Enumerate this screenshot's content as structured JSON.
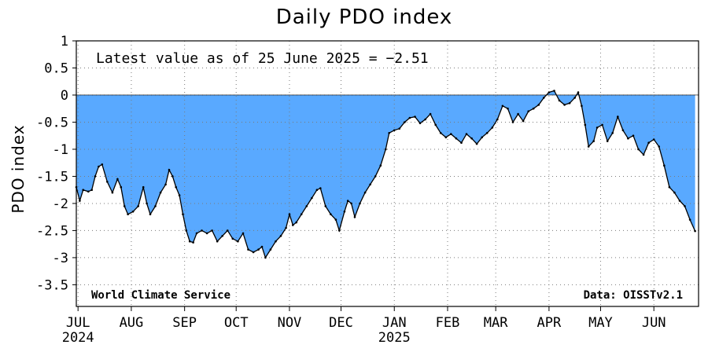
{
  "chart_data": {
    "type": "area",
    "title": "Daily PDO index",
    "ylabel": "PDO index",
    "xlabel": "",
    "annotation": "Latest value as of 25 June 2025 = −2.51",
    "credit_left": "World Climate Service",
    "credit_right": "Data: OISSTv2.1",
    "ylim": [
      -3.9,
      1.0
    ],
    "xlim": [
      "2024-06-30",
      "2025-06-27"
    ],
    "baseline": 0,
    "grid": true,
    "fill_color": "#59a9ff",
    "line_color": "#000000",
    "yticks": [
      {
        "label": "1",
        "value": 1
      },
      {
        "label": "0.5",
        "value": 0.5
      },
      {
        "label": "0",
        "value": 0
      },
      {
        "label": "-0.5",
        "value": -0.5
      },
      {
        "label": "-1",
        "value": -1
      },
      {
        "label": "-1.5",
        "value": -1.5
      },
      {
        "label": "-2",
        "value": -2
      },
      {
        "label": "-2.5",
        "value": -2.5
      },
      {
        "label": "-3",
        "value": -3
      },
      {
        "label": "-3.5",
        "value": -3.5
      }
    ],
    "xticks": [
      {
        "label": "JUL",
        "sublabel": "2024",
        "date": "2024-07-01"
      },
      {
        "label": "AUG",
        "sublabel": "",
        "date": "2024-08-01"
      },
      {
        "label": "SEP",
        "sublabel": "",
        "date": "2024-09-01"
      },
      {
        "label": "OCT",
        "sublabel": "",
        "date": "2024-10-01"
      },
      {
        "label": "NOV",
        "sublabel": "",
        "date": "2024-11-01"
      },
      {
        "label": "DEC",
        "sublabel": "",
        "date": "2024-12-01"
      },
      {
        "label": "JAN",
        "sublabel": "2025",
        "date": "2025-01-01"
      },
      {
        "label": "FEB",
        "sublabel": "",
        "date": "2025-02-01"
      },
      {
        "label": "MAR",
        "sublabel": "",
        "date": "2025-03-01"
      },
      {
        "label": "APR",
        "sublabel": "",
        "date": "2025-04-01"
      },
      {
        "label": "MAY",
        "sublabel": "",
        "date": "2025-05-01"
      },
      {
        "label": "JUN",
        "sublabel": "",
        "date": "2025-06-01"
      }
    ],
    "series": [
      {
        "points": [
          [
            "2024-06-30",
            -1.7
          ],
          [
            "2024-07-02",
            -1.95
          ],
          [
            "2024-07-04",
            -1.75
          ],
          [
            "2024-07-07",
            -1.78
          ],
          [
            "2024-07-09",
            -1.75
          ],
          [
            "2024-07-11",
            -1.5
          ],
          [
            "2024-07-13",
            -1.32
          ],
          [
            "2024-07-15",
            -1.28
          ],
          [
            "2024-07-18",
            -1.6
          ],
          [
            "2024-07-21",
            -1.8
          ],
          [
            "2024-07-24",
            -1.55
          ],
          [
            "2024-07-26",
            -1.7
          ],
          [
            "2024-07-28",
            -2.05
          ],
          [
            "2024-07-30",
            -2.2
          ],
          [
            "2024-08-02",
            -2.15
          ],
          [
            "2024-08-05",
            -2.05
          ],
          [
            "2024-08-08",
            -1.7
          ],
          [
            "2024-08-10",
            -2.0
          ],
          [
            "2024-08-12",
            -2.2
          ],
          [
            "2024-08-15",
            -2.05
          ],
          [
            "2024-08-18",
            -1.8
          ],
          [
            "2024-08-21",
            -1.65
          ],
          [
            "2024-08-23",
            -1.38
          ],
          [
            "2024-08-25",
            -1.5
          ],
          [
            "2024-08-27",
            -1.7
          ],
          [
            "2024-08-29",
            -1.85
          ],
          [
            "2024-08-31",
            -2.2
          ],
          [
            "2024-09-02",
            -2.5
          ],
          [
            "2024-09-04",
            -2.7
          ],
          [
            "2024-09-06",
            -2.72
          ],
          [
            "2024-09-08",
            -2.55
          ],
          [
            "2024-09-11",
            -2.5
          ],
          [
            "2024-09-14",
            -2.55
          ],
          [
            "2024-09-17",
            -2.5
          ],
          [
            "2024-09-20",
            -2.7
          ],
          [
            "2024-09-23",
            -2.6
          ],
          [
            "2024-09-26",
            -2.5
          ],
          [
            "2024-09-29",
            -2.65
          ],
          [
            "2024-10-02",
            -2.7
          ],
          [
            "2024-10-05",
            -2.55
          ],
          [
            "2024-10-08",
            -2.85
          ],
          [
            "2024-10-11",
            -2.9
          ],
          [
            "2024-10-14",
            -2.85
          ],
          [
            "2024-10-16",
            -2.8
          ],
          [
            "2024-10-18",
            -3.0
          ],
          [
            "2024-10-21",
            -2.85
          ],
          [
            "2024-10-24",
            -2.7
          ],
          [
            "2024-10-27",
            -2.6
          ],
          [
            "2024-10-30",
            -2.45
          ],
          [
            "2024-11-01",
            -2.2
          ],
          [
            "2024-11-03",
            -2.4
          ],
          [
            "2024-11-05",
            -2.35
          ],
          [
            "2024-11-08",
            -2.2
          ],
          [
            "2024-11-11",
            -2.05
          ],
          [
            "2024-11-14",
            -1.9
          ],
          [
            "2024-11-17",
            -1.75
          ],
          [
            "2024-11-19",
            -1.72
          ],
          [
            "2024-11-22",
            -2.05
          ],
          [
            "2024-11-25",
            -2.2
          ],
          [
            "2024-11-28",
            -2.3
          ],
          [
            "2024-11-30",
            -2.5
          ],
          [
            "2024-12-03",
            -2.15
          ],
          [
            "2024-12-05",
            -1.95
          ],
          [
            "2024-12-07",
            -2.0
          ],
          [
            "2024-12-09",
            -2.25
          ],
          [
            "2024-12-12",
            -2.0
          ],
          [
            "2024-12-15",
            -1.8
          ],
          [
            "2024-12-18",
            -1.65
          ],
          [
            "2024-12-21",
            -1.5
          ],
          [
            "2024-12-24",
            -1.3
          ],
          [
            "2024-12-27",
            -1.0
          ],
          [
            "2024-12-29",
            -0.7
          ],
          [
            "2025-01-01",
            -0.65
          ],
          [
            "2025-01-04",
            -0.62
          ],
          [
            "2025-01-07",
            -0.5
          ],
          [
            "2025-01-10",
            -0.42
          ],
          [
            "2025-01-13",
            -0.4
          ],
          [
            "2025-01-16",
            -0.52
          ],
          [
            "2025-01-19",
            -0.45
          ],
          [
            "2025-01-22",
            -0.35
          ],
          [
            "2025-01-25",
            -0.55
          ],
          [
            "2025-01-28",
            -0.7
          ],
          [
            "2025-01-31",
            -0.78
          ],
          [
            "2025-02-03",
            -0.72
          ],
          [
            "2025-02-06",
            -0.8
          ],
          [
            "2025-02-09",
            -0.88
          ],
          [
            "2025-02-12",
            -0.72
          ],
          [
            "2025-02-15",
            -0.8
          ],
          [
            "2025-02-18",
            -0.9
          ],
          [
            "2025-02-21",
            -0.78
          ],
          [
            "2025-02-24",
            -0.7
          ],
          [
            "2025-02-27",
            -0.6
          ],
          [
            "2025-03-02",
            -0.45
          ],
          [
            "2025-03-05",
            -0.2
          ],
          [
            "2025-03-08",
            -0.25
          ],
          [
            "2025-03-11",
            -0.5
          ],
          [
            "2025-03-14",
            -0.35
          ],
          [
            "2025-03-17",
            -0.48
          ],
          [
            "2025-03-20",
            -0.3
          ],
          [
            "2025-03-23",
            -0.25
          ],
          [
            "2025-03-26",
            -0.18
          ],
          [
            "2025-03-29",
            -0.05
          ],
          [
            "2025-04-01",
            0.05
          ],
          [
            "2025-04-04",
            0.08
          ],
          [
            "2025-04-07",
            -0.1
          ],
          [
            "2025-04-10",
            -0.18
          ],
          [
            "2025-04-13",
            -0.15
          ],
          [
            "2025-04-16",
            -0.05
          ],
          [
            "2025-04-18",
            0.05
          ],
          [
            "2025-04-20",
            -0.2
          ],
          [
            "2025-04-22",
            -0.55
          ],
          [
            "2025-04-24",
            -0.95
          ],
          [
            "2025-04-27",
            -0.85
          ],
          [
            "2025-04-29",
            -0.6
          ],
          [
            "2025-05-02",
            -0.55
          ],
          [
            "2025-05-05",
            -0.85
          ],
          [
            "2025-05-08",
            -0.7
          ],
          [
            "2025-05-11",
            -0.4
          ],
          [
            "2025-05-14",
            -0.65
          ],
          [
            "2025-05-17",
            -0.8
          ],
          [
            "2025-05-20",
            -0.75
          ],
          [
            "2025-05-23",
            -1.0
          ],
          [
            "2025-05-26",
            -1.1
          ],
          [
            "2025-05-29",
            -0.88
          ],
          [
            "2025-06-01",
            -0.82
          ],
          [
            "2025-06-04",
            -0.95
          ],
          [
            "2025-06-07",
            -1.3
          ],
          [
            "2025-06-10",
            -1.7
          ],
          [
            "2025-06-13",
            -1.8
          ],
          [
            "2025-06-16",
            -1.95
          ],
          [
            "2025-06-19",
            -2.05
          ],
          [
            "2025-06-22",
            -2.3
          ],
          [
            "2025-06-25",
            -2.51
          ]
        ]
      }
    ]
  }
}
